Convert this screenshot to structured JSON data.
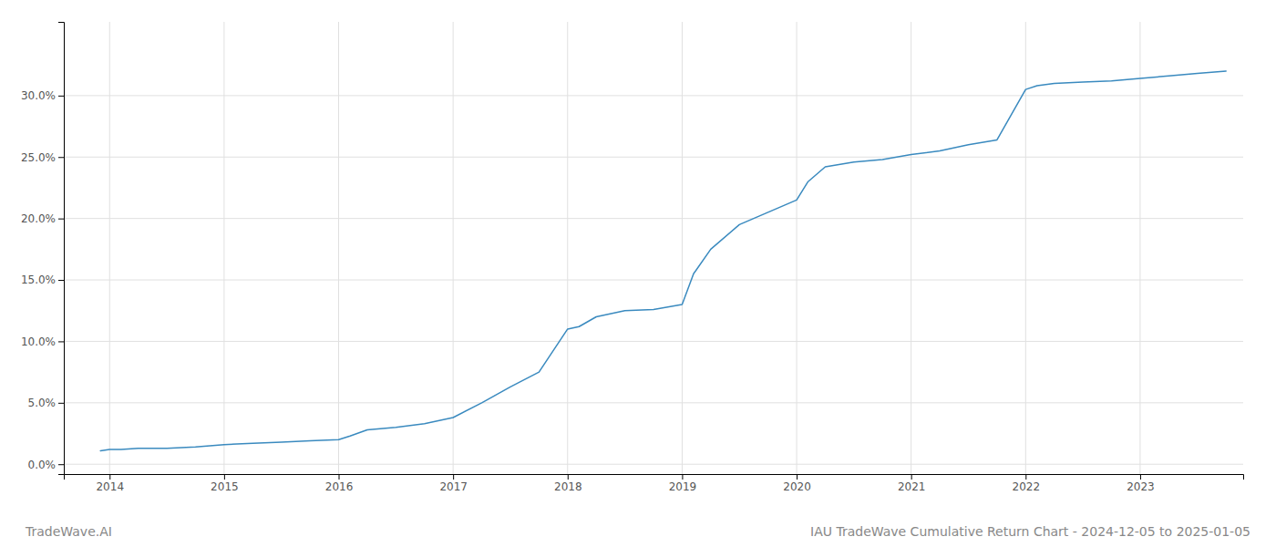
{
  "chart_data": {
    "type": "line",
    "title": "IAU TradeWave Cumulative Return Chart - 2024-12-05 to 2025-01-05",
    "annotations": [
      "TradeWave.AI"
    ],
    "x": [
      2013.92,
      2014.0,
      2014.1,
      2014.25,
      2014.5,
      2014.75,
      2015.0,
      2015.25,
      2015.5,
      2015.75,
      2016.0,
      2016.1,
      2016.25,
      2016.5,
      2016.75,
      2017.0,
      2017.25,
      2017.5,
      2017.75,
      2018.0,
      2018.1,
      2018.25,
      2018.5,
      2018.75,
      2019.0,
      2019.1,
      2019.25,
      2019.5,
      2019.75,
      2020.0,
      2020.1,
      2020.25,
      2020.5,
      2020.75,
      2021.0,
      2021.25,
      2021.5,
      2021.75,
      2022.0,
      2022.1,
      2022.25,
      2022.5,
      2022.75,
      2023.0,
      2023.25,
      2023.5,
      2023.75
    ],
    "values": [
      0.011,
      0.012,
      0.012,
      0.013,
      0.013,
      0.014,
      0.016,
      0.017,
      0.018,
      0.019,
      0.02,
      0.023,
      0.028,
      0.03,
      0.033,
      0.038,
      0.05,
      0.063,
      0.075,
      0.11,
      0.112,
      0.12,
      0.125,
      0.126,
      0.13,
      0.155,
      0.175,
      0.195,
      0.205,
      0.215,
      0.23,
      0.242,
      0.246,
      0.248,
      0.252,
      0.255,
      0.26,
      0.264,
      0.305,
      0.308,
      0.31,
      0.311,
      0.312,
      0.314,
      0.316,
      0.318,
      0.32
    ],
    "color": "#3a8abf",
    "xlim": [
      2013.6,
      2023.9
    ],
    "xticks": [
      2014,
      2015,
      2016,
      2017,
      2018,
      2019,
      2020,
      2021,
      2022,
      2023
    ],
    "ylim": [
      -0.008,
      0.36
    ],
    "yticks": [
      {
        "value": 0.0,
        "label": "0.0%"
      },
      {
        "value": 0.05,
        "label": "5.0%"
      },
      {
        "value": 0.1,
        "label": "10.0%"
      },
      {
        "value": 0.15,
        "label": "15.0%"
      },
      {
        "value": 0.2,
        "label": "20.0%"
      },
      {
        "value": 0.25,
        "label": "25.0%"
      },
      {
        "value": 0.3,
        "label": "30.0%"
      }
    ],
    "grid": true
  }
}
